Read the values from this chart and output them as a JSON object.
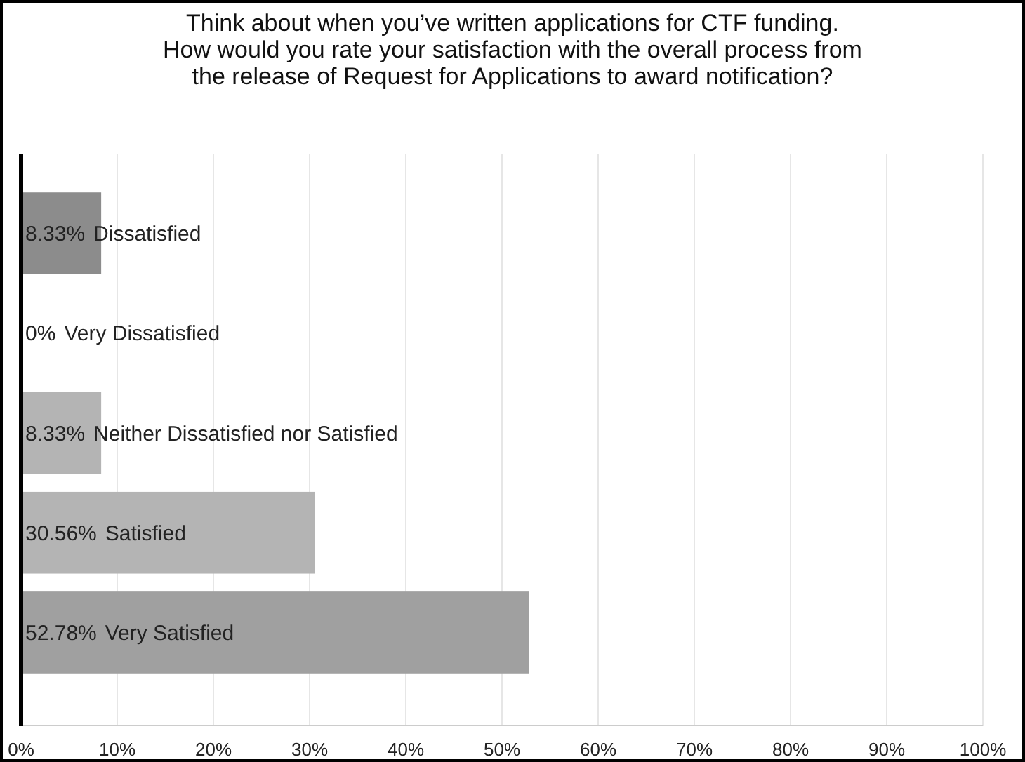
{
  "chart_data": {
    "type": "bar",
    "orientation": "horizontal",
    "title": "Think about when you’ve written applications for CTF funding.\nHow would you rate your satisfaction with the overall process from\nthe release of Request for Applications to award notification?",
    "categories": [
      "Dissatisfied",
      "Very Dissatisfied",
      "Neither Dissatisfied nor Satisfied",
      "Satisfied",
      "Very Satisfied"
    ],
    "values": [
      8.33,
      0,
      8.33,
      30.56,
      52.78
    ],
    "colors": [
      "#8c8c8c",
      "#a0a0a0",
      "#b4b4b4",
      "#b4b4b4",
      "#a0a0a0"
    ],
    "value_labels": [
      "8.33%",
      "0%",
      "8.33%",
      "30.56%",
      "52.78%"
    ],
    "xlim": [
      0,
      100
    ],
    "xticks": [
      {
        "value": 0,
        "label": "0%"
      },
      {
        "value": 10,
        "label": "10%"
      },
      {
        "value": 20,
        "label": "20%"
      },
      {
        "value": 30,
        "label": "30%"
      },
      {
        "value": 40,
        "label": "40%"
      },
      {
        "value": 50,
        "label": "50%"
      },
      {
        "value": 60,
        "label": "60%"
      },
      {
        "value": 70,
        "label": "70%"
      },
      {
        "value": 80,
        "label": "80%"
      },
      {
        "value": 90,
        "label": "90%"
      },
      {
        "value": 100,
        "label": "100%"
      }
    ],
    "grid": "x"
  }
}
